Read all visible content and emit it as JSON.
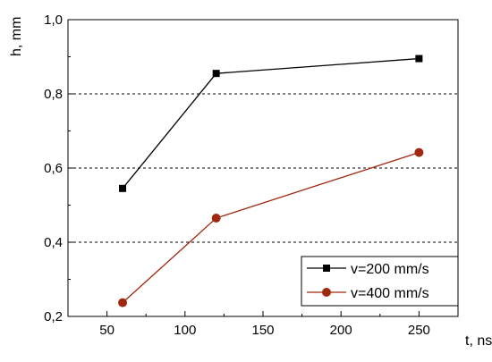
{
  "chart_data": {
    "type": "line",
    "xlabel": "t, ns",
    "ylabel": "h, mm",
    "xlim": [
      25,
      275
    ],
    "ylim": [
      0.2,
      1.0
    ],
    "x_ticks": [
      50,
      100,
      150,
      200,
      250
    ],
    "x_tick_labels": [
      "50",
      "100",
      "150",
      "200",
      "250"
    ],
    "y_ticks": [
      0.2,
      0.4,
      0.6,
      0.8,
      1.0
    ],
    "y_tick_labels": [
      "0,2",
      "0,4",
      "0,6",
      "0,8",
      "1,0"
    ],
    "grid": "horizontal dashed",
    "legend_position": "bottom-right",
    "series": [
      {
        "name": "v=200 mm/s",
        "color": "#000000",
        "marker": "square",
        "x": [
          60,
          120,
          250
        ],
        "y": [
          0.545,
          0.855,
          0.895
        ]
      },
      {
        "name": "v=400 mm/s",
        "color": "#a0280f",
        "marker": "circle",
        "x": [
          60,
          120,
          250
        ],
        "y": [
          0.237,
          0.465,
          0.642
        ]
      }
    ]
  }
}
